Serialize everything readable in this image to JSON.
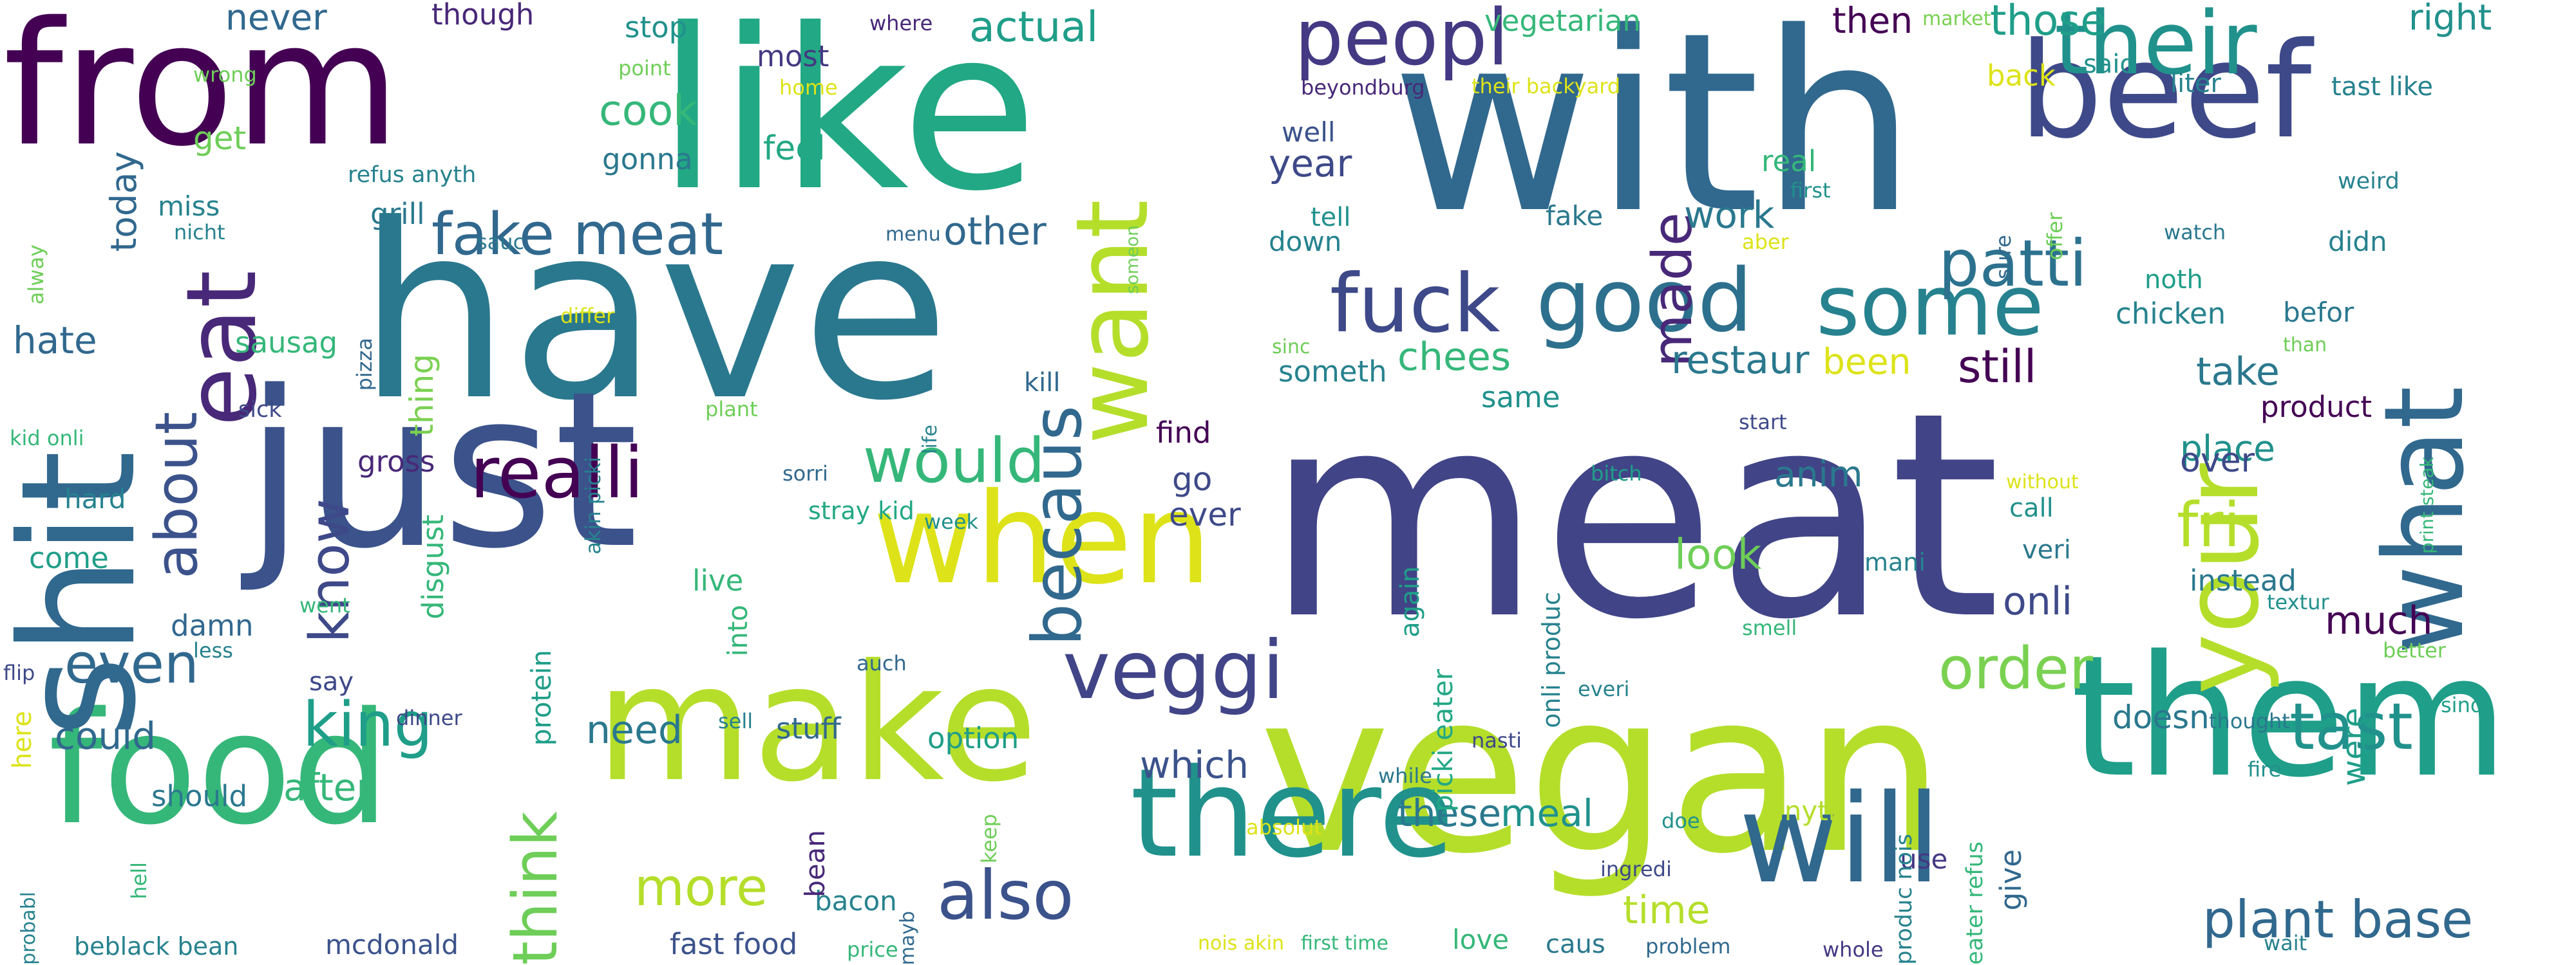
{
  "words": [
    {
      "text": "meat",
      "color": "#414487"
    },
    {
      "text": "vegan",
      "color": "#b5de2b"
    },
    {
      "text": "have",
      "color": "#2a788e"
    },
    {
      "text": "with",
      "color": "#31688e"
    },
    {
      "text": "like",
      "color": "#22a884"
    },
    {
      "text": "just",
      "color": "#3b528b"
    },
    {
      "text": "food",
      "color": "#35b779"
    },
    {
      "text": "make",
      "color": "#b5de2b"
    },
    {
      "text": "from",
      "color": "#440154"
    },
    {
      "text": "them",
      "color": "#1f9e89"
    },
    {
      "text": "there",
      "color": "#21918c"
    },
    {
      "text": "shit",
      "color": "#31688e"
    },
    {
      "text": "beef",
      "color": "#3e4989"
    },
    {
      "text": "your",
      "color": "#b5de2b"
    },
    {
      "text": "will",
      "color": "#31688e"
    },
    {
      "text": "when",
      "color": "#dde318"
    },
    {
      "text": "what",
      "color": "#31688e"
    },
    {
      "text": "want",
      "color": "#b5de2b"
    },
    {
      "text": "their",
      "color": "#21918c"
    },
    {
      "text": "eat",
      "color": "#482878"
    },
    {
      "text": "good",
      "color": "#2d708e"
    },
    {
      "text": "fuck",
      "color": "#3e4989"
    },
    {
      "text": "some",
      "color": "#26828e"
    },
    {
      "text": "peopl",
      "color": "#443983"
    },
    {
      "text": "veggi",
      "color": "#414487"
    },
    {
      "text": "realli",
      "color": "#440154"
    },
    {
      "text": "becaus",
      "color": "#31688e"
    },
    {
      "text": "patti",
      "color": "#2c728e"
    },
    {
      "text": "fake meat",
      "color": "#31688e"
    },
    {
      "text": "about",
      "color": "#3b528b"
    },
    {
      "text": "also",
      "color": "#3b528b"
    },
    {
      "text": "think",
      "color": "#6ece58"
    },
    {
      "text": "tast",
      "color": "#21918c"
    },
    {
      "text": "fri",
      "color": "#b5de2b"
    },
    {
      "text": "order",
      "color": "#7ad151"
    },
    {
      "text": "king",
      "color": "#1f9e89"
    },
    {
      "text": "even",
      "color": "#31688e"
    },
    {
      "text": "would",
      "color": "#35b779"
    },
    {
      "text": "know",
      "color": "#3e4989"
    },
    {
      "text": "made",
      "color": "#482878"
    },
    {
      "text": "plant base",
      "color": "#31688e"
    },
    {
      "text": "more",
      "color": "#b5de2b"
    },
    {
      "text": "some",
      "color": "#26828e"
    },
    {
      "text": "could",
      "color": "#31688e"
    },
    {
      "text": "need",
      "color": "#2a788e"
    },
    {
      "text": "after",
      "color": "#35b779"
    },
    {
      "text": "which",
      "color": "#3b528b"
    },
    {
      "text": "these",
      "color": "#2a788e"
    },
    {
      "text": "meal",
      "color": "#21918c"
    },
    {
      "text": "still",
      "color": "#440154"
    },
    {
      "text": "take",
      "color": "#2a788e"
    },
    {
      "text": "chees",
      "color": "#35b779"
    },
    {
      "text": "restaur",
      "color": "#2a788e"
    },
    {
      "text": "been",
      "color": "#dde318"
    },
    {
      "text": "other",
      "color": "#31688e"
    },
    {
      "text": "cook",
      "color": "#35b779"
    },
    {
      "text": "actual",
      "color": "#1f9e89"
    },
    {
      "text": "those",
      "color": "#1f9e89"
    },
    {
      "text": "year",
      "color": "#3e4989"
    },
    {
      "text": "work",
      "color": "#2a788e"
    },
    {
      "text": "hate",
      "color": "#31688e"
    },
    {
      "text": "sausag",
      "color": "#35b779"
    },
    {
      "text": "thing",
      "color": "#7ad151"
    },
    {
      "text": "today",
      "color": "#31688e"
    },
    {
      "text": "never",
      "color": "#31688e"
    },
    {
      "text": "feel",
      "color": "#22a884"
    },
    {
      "text": "gonna",
      "color": "#2a788e"
    },
    {
      "text": "most",
      "color": "#443983"
    },
    {
      "text": "then",
      "color": "#440154"
    },
    {
      "text": "stop",
      "color": "#21918c"
    },
    {
      "text": "though",
      "color": "#482878"
    },
    {
      "text": "right",
      "color": "#21918c"
    },
    {
      "text": "vegetarian",
      "color": "#35b779"
    },
    {
      "text": "anim",
      "color": "#2a788e"
    },
    {
      "text": "place",
      "color": "#21918c"
    },
    {
      "text": "over",
      "color": "#3e4989"
    },
    {
      "text": "look",
      "color": "#6ece58"
    },
    {
      "text": "onli",
      "color": "#3e4989"
    },
    {
      "text": "much",
      "color": "#440154"
    },
    {
      "text": "instead",
      "color": "#2a788e"
    },
    {
      "text": "were",
      "color": "#1f9e89"
    },
    {
      "text": "doesn",
      "color": "#2a788e"
    },
    {
      "text": "time",
      "color": "#b5de2b"
    },
    {
      "text": "ever",
      "color": "#3e4989"
    },
    {
      "text": "go",
      "color": "#3e4989"
    },
    {
      "text": "find",
      "color": "#440154"
    },
    {
      "text": "same",
      "color": "#21918c"
    },
    {
      "text": "someth",
      "color": "#26828e"
    },
    {
      "text": "chicken",
      "color": "#26828e"
    },
    {
      "text": "product",
      "color": "#440154"
    },
    {
      "text": "gross",
      "color": "#482878"
    },
    {
      "text": "disgust",
      "color": "#35b779"
    },
    {
      "text": "protein",
      "color": "#1f9e89"
    },
    {
      "text": "option",
      "color": "#1f9e89"
    },
    {
      "text": "stuff",
      "color": "#31688e"
    },
    {
      "text": "should",
      "color": "#2a788e"
    },
    {
      "text": "damn",
      "color": "#31688e"
    },
    {
      "text": "live",
      "color": "#35b779"
    },
    {
      "text": "into",
      "color": "#35b779"
    },
    {
      "text": "grill",
      "color": "#2a788e"
    },
    {
      "text": "miss",
      "color": "#26828e"
    },
    {
      "text": "get",
      "color": "#6ece58"
    },
    {
      "text": "kill",
      "color": "#31688e"
    },
    {
      "text": "fake",
      "color": "#2a788e"
    },
    {
      "text": "tell",
      "color": "#21918c"
    },
    {
      "text": "down",
      "color": "#26828e"
    },
    {
      "text": "well",
      "color": "#3b528b"
    },
    {
      "text": "said",
      "color": "#21918c"
    },
    {
      "text": "back",
      "color": "#dde318"
    },
    {
      "text": "liter",
      "color": "#26828e"
    },
    {
      "text": "tast like",
      "color": "#26828e"
    },
    {
      "text": "real",
      "color": "#35b779"
    },
    {
      "text": "didn",
      "color": "#26828e"
    },
    {
      "text": "noth",
      "color": "#1f9e89"
    },
    {
      "text": "befor",
      "color": "#2a788e"
    },
    {
      "text": "fast food",
      "color": "#3b528b"
    },
    {
      "text": "mcdonald",
      "color": "#3b528b"
    },
    {
      "text": "bacon",
      "color": "#26828e"
    },
    {
      "text": "anyth",
      "color": "#b5de2b"
    },
    {
      "text": "give",
      "color": "#31688e"
    },
    {
      "text": "use",
      "color": "#443983"
    },
    {
      "text": "love",
      "color": "#35b779"
    },
    {
      "text": "caus",
      "color": "#2a788e"
    },
    {
      "text": "bean",
      "color": "#482878"
    },
    {
      "text": "come",
      "color": "#1f9e89"
    },
    {
      "text": "hard",
      "color": "#26828e"
    },
    {
      "text": "here",
      "color": "#dde318"
    },
    {
      "text": "say",
      "color": "#3e4989"
    },
    {
      "text": "veri",
      "color": "#2a788e"
    },
    {
      "text": "call",
      "color": "#21918c"
    },
    {
      "text": "mani",
      "color": "#26828e"
    },
    {
      "text": "again",
      "color": "#1f9e89"
    },
    {
      "text": "picki eater",
      "color": "#22a884"
    },
    {
      "text": "onli produc",
      "color": "#26828e"
    },
    {
      "text": "eater refus",
      "color": "#35b779"
    },
    {
      "text": "produc nois",
      "color": "#26828e"
    },
    {
      "text": "beblack bean",
      "color": "#26828e"
    },
    {
      "text": "stray kid",
      "color": "#22a884"
    },
    {
      "text": "someon",
      "color": "#6ece58"
    },
    {
      "text": "beyondburg",
      "color": "#482878"
    },
    {
      "text": "their backyard",
      "color": "#dde318"
    },
    {
      "text": "refus anyth",
      "color": "#26828e"
    },
    {
      "text": "kid onli",
      "color": "#35b779"
    },
    {
      "text": "akin picki",
      "color": "#26828e"
    },
    {
      "text": "print steak",
      "color": "#35b779"
    },
    {
      "text": "first time",
      "color": "#35b779"
    },
    {
      "text": "nois akin",
      "color": "#dde318"
    },
    {
      "text": "wrong",
      "color": "#6ece58"
    },
    {
      "text": "point",
      "color": "#6ece58"
    },
    {
      "text": "home",
      "color": "#dde318"
    },
    {
      "text": "where",
      "color": "#482878"
    },
    {
      "text": "market",
      "color": "#7ad151"
    },
    {
      "text": "alway",
      "color": "#6ece58"
    },
    {
      "text": "nicht",
      "color": "#26828e"
    },
    {
      "text": "sauc",
      "color": "#2a788e"
    },
    {
      "text": "menu",
      "color": "#31688e"
    },
    {
      "text": "aber",
      "color": "#dde318"
    },
    {
      "text": "first",
      "color": "#21918c"
    },
    {
      "text": "sure",
      "color": "#31688e"
    },
    {
      "text": "offer",
      "color": "#6ece58"
    },
    {
      "text": "watch",
      "color": "#2a788e"
    },
    {
      "text": "weird",
      "color": "#26828e"
    },
    {
      "text": "pizza",
      "color": "#31688e"
    },
    {
      "text": "differ",
      "color": "#dde318"
    },
    {
      "text": "sinc",
      "color": "#6ece58"
    },
    {
      "text": "than",
      "color": "#6ece58"
    },
    {
      "text": "sick",
      "color": "#3e4989"
    },
    {
      "text": "plant",
      "color": "#6ece58"
    },
    {
      "text": "life",
      "color": "#26828e"
    },
    {
      "text": "start",
      "color": "#3e4989"
    },
    {
      "text": "sorri",
      "color": "#31688e"
    },
    {
      "text": "week",
      "color": "#21918c"
    },
    {
      "text": "bitch",
      "color": "#1f9e89"
    },
    {
      "text": "without",
      "color": "#dde318"
    },
    {
      "text": "went",
      "color": "#35b779"
    },
    {
      "text": "less",
      "color": "#26828e"
    },
    {
      "text": "flip",
      "color": "#3e4989"
    },
    {
      "text": "auch",
      "color": "#31688e"
    },
    {
      "text": "smell",
      "color": "#35b779"
    },
    {
      "text": "textur",
      "color": "#21918c"
    },
    {
      "text": "better",
      "color": "#6ece58"
    },
    {
      "text": "dinner",
      "color": "#3e4989"
    },
    {
      "text": "sell",
      "color": "#26828e"
    },
    {
      "text": "everi",
      "color": "#26828e"
    },
    {
      "text": "sind",
      "color": "#1f9e89"
    },
    {
      "text": "thought",
      "color": "#2a788e"
    },
    {
      "text": "nasti",
      "color": "#3e4989"
    },
    {
      "text": "while",
      "color": "#2a788e"
    },
    {
      "text": "fire",
      "color": "#21918c"
    },
    {
      "text": "absolut",
      "color": "#dde318"
    },
    {
      "text": "doe",
      "color": "#21918c"
    },
    {
      "text": "ingredi",
      "color": "#3e4989"
    },
    {
      "text": "keep",
      "color": "#6ece58"
    },
    {
      "text": "hell",
      "color": "#35b779"
    },
    {
      "text": "probabl",
      "color": "#26828e"
    },
    {
      "text": "mayb",
      "color": "#31688e"
    },
    {
      "text": "price",
      "color": "#35b779"
    },
    {
      "text": "problem",
      "color": "#31688e"
    },
    {
      "text": "whole",
      "color": "#443983"
    },
    {
      "text": "wait",
      "color": "#26828e"
    }
  ]
}
